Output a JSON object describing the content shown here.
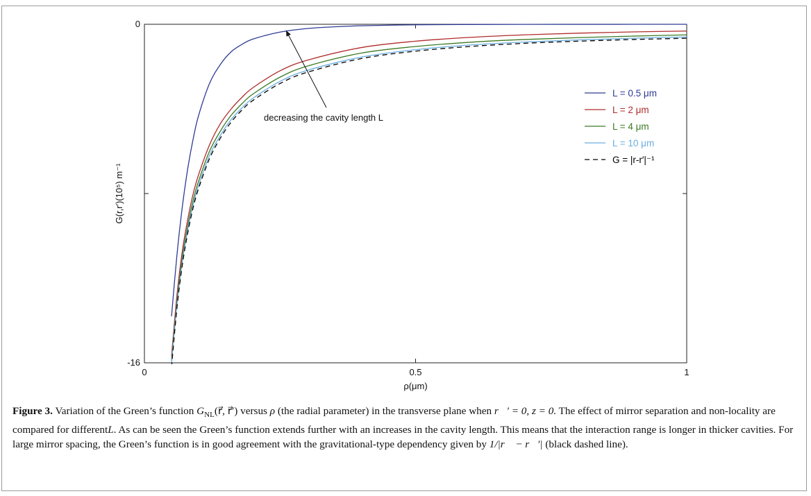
{
  "chart_data": {
    "type": "line",
    "xlabel": "ρ(μm)",
    "ylabel": "G(r,r′)(10⁵) m⁻¹",
    "xlim": [
      0,
      1
    ],
    "ylim": [
      -16,
      0
    ],
    "xticks": [
      0,
      0.5,
      1
    ],
    "xtick_labels": [
      "0",
      "0.5",
      "1"
    ],
    "yticks": [
      0,
      -8,
      -16
    ],
    "ytick_labels": [
      "0",
      "",
      "-16"
    ],
    "grid": false,
    "legend_position": "right",
    "annotation": "decreasing the cavity length L",
    "series": [
      {
        "name": "L = 0.5 μm",
        "color": "#2e3a94",
        "style": "solid",
        "x": [
          0.05,
          0.06,
          0.07,
          0.08,
          0.09,
          0.1,
          0.12,
          0.14,
          0.16,
          0.18,
          0.2,
          0.25,
          0.3,
          0.35,
          0.4,
          0.5,
          0.6,
          0.7,
          0.8,
          0.9,
          1.0
        ],
        "y": [
          -13.8,
          -10.9,
          -8.6,
          -6.8,
          -5.4,
          -4.3,
          -2.8,
          -1.9,
          -1.3,
          -0.95,
          -0.7,
          -0.37,
          -0.2,
          -0.12,
          -0.07,
          -0.025,
          -0.01,
          -0.004,
          -0.002,
          -0.001,
          -0.0005
        ]
      },
      {
        "name": "L = 2 μm",
        "color": "#b02a2a",
        "style": "solid",
        "x": [
          0.05,
          0.06,
          0.07,
          0.08,
          0.09,
          0.1,
          0.12,
          0.14,
          0.16,
          0.18,
          0.2,
          0.25,
          0.3,
          0.4,
          0.5,
          0.6,
          0.7,
          0.8,
          0.9,
          1.0
        ],
        "y": [
          -15.7,
          -12.8,
          -10.7,
          -9.2,
          -8.0,
          -7.1,
          -5.7,
          -4.7,
          -4.0,
          -3.45,
          -3.0,
          -2.2,
          -1.7,
          -1.1,
          -0.8,
          -0.62,
          -0.5,
          -0.42,
          -0.36,
          -0.32
        ]
      },
      {
        "name": "L = 4 μm",
        "color": "#3b7a23",
        "style": "solid",
        "x": [
          0.05,
          0.06,
          0.07,
          0.08,
          0.09,
          0.1,
          0.12,
          0.14,
          0.16,
          0.18,
          0.2,
          0.25,
          0.3,
          0.4,
          0.5,
          0.6,
          0.7,
          0.8,
          0.9,
          1.0
        ],
        "y": [
          -15.9,
          -13.1,
          -11.0,
          -9.5,
          -8.3,
          -7.4,
          -6.0,
          -5.05,
          -4.3,
          -3.75,
          -3.3,
          -2.5,
          -1.98,
          -1.36,
          -1.05,
          -0.85,
          -0.72,
          -0.63,
          -0.56,
          -0.5
        ]
      },
      {
        "name": "L = 10 μm",
        "color": "#6aaee0",
        "style": "solid",
        "x": [
          0.05,
          0.06,
          0.07,
          0.08,
          0.09,
          0.1,
          0.12,
          0.14,
          0.16,
          0.18,
          0.2,
          0.25,
          0.3,
          0.4,
          0.5,
          0.6,
          0.7,
          0.8,
          0.9,
          1.0
        ],
        "y": [
          -16.0,
          -13.25,
          -11.2,
          -9.7,
          -8.5,
          -7.6,
          -6.2,
          -5.25,
          -4.5,
          -3.95,
          -3.5,
          -2.7,
          -2.18,
          -1.55,
          -1.2,
          -0.98,
          -0.84,
          -0.74,
          -0.66,
          -0.6
        ]
      },
      {
        "name": "G = |r-r′|⁻¹",
        "color": "#000000",
        "style": "dashed",
        "x": [
          0.05,
          0.06,
          0.07,
          0.08,
          0.09,
          0.1,
          0.12,
          0.14,
          0.16,
          0.18,
          0.2,
          0.25,
          0.3,
          0.4,
          0.5,
          0.6,
          0.7,
          0.8,
          0.9,
          1.0
        ],
        "y": [
          -16.2,
          -13.4,
          -11.35,
          -9.85,
          -8.65,
          -7.75,
          -6.35,
          -5.38,
          -4.62,
          -4.05,
          -3.6,
          -2.8,
          -2.27,
          -1.62,
          -1.27,
          -1.05,
          -0.9,
          -0.8,
          -0.72,
          -0.66
        ]
      }
    ]
  },
  "caption": {
    "label": "Figure 3.",
    "line1_a": "Variation of the Green’s function",
    "math_gnl": "G",
    "math_gnl_sub": "NL",
    "math_args": "(r⃗, r⃗′)",
    "line1_b": "versus",
    "math_rho": "ρ",
    "line1_c": "(the radial parameter) in the transverse plane when",
    "math_cond": "r⃗′ = 0, z = 0.",
    "line2_a": "The effect of mirror separation and non-locality are compared for different",
    "math_L": "L",
    "line2_b": ". As can be seen the Green’s function extends further with an increases in the cavity length. This means that the interaction range is longer in thicker cavities. For large mirror spacing, the Green’s function is in good agreement with the gravitational-type dependency given by",
    "math_inv": "1/|r⃗ − r⃗′|",
    "line4_end": "(black dashed line)."
  }
}
